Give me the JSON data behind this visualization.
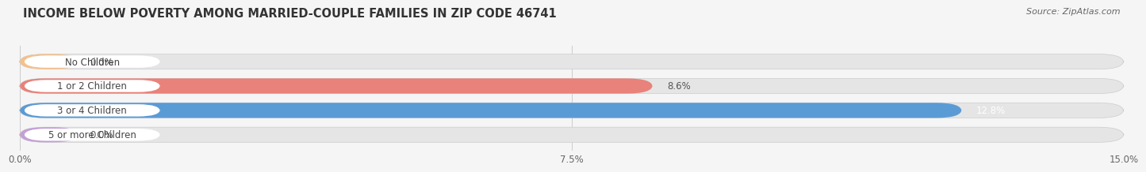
{
  "title": "INCOME BELOW POVERTY AMONG MARRIED-COUPLE FAMILIES IN ZIP CODE 46741",
  "source": "Source: ZipAtlas.com",
  "categories": [
    "No Children",
    "1 or 2 Children",
    "3 or 4 Children",
    "5 or more Children"
  ],
  "values": [
    0.0,
    8.6,
    12.8,
    0.0
  ],
  "bar_colors": [
    "#f5c08a",
    "#e8827a",
    "#5b9bd5",
    "#c4a0d4"
  ],
  "bar_edge_colors": [
    "#d4a06a",
    "#c0504d",
    "#2e75b6",
    "#9070b0"
  ],
  "value_label_colors": [
    "#555555",
    "#555555",
    "#ffffff",
    "#555555"
  ],
  "xlim": [
    0,
    15.0
  ],
  "xticks": [
    0.0,
    7.5,
    15.0
  ],
  "xticklabels": [
    "0.0%",
    "7.5%",
    "15.0%"
  ],
  "bar_height": 0.62,
  "background_color": "#f5f5f5",
  "bar_bg_color": "#e5e5e5",
  "title_fontsize": 10.5,
  "source_fontsize": 8,
  "cat_label_fontsize": 8.5,
  "val_label_fontsize": 8.5,
  "tick_fontsize": 8.5,
  "label_pill_color": "#ffffff",
  "label_text_color": "#444444",
  "small_bar_width": 0.8
}
